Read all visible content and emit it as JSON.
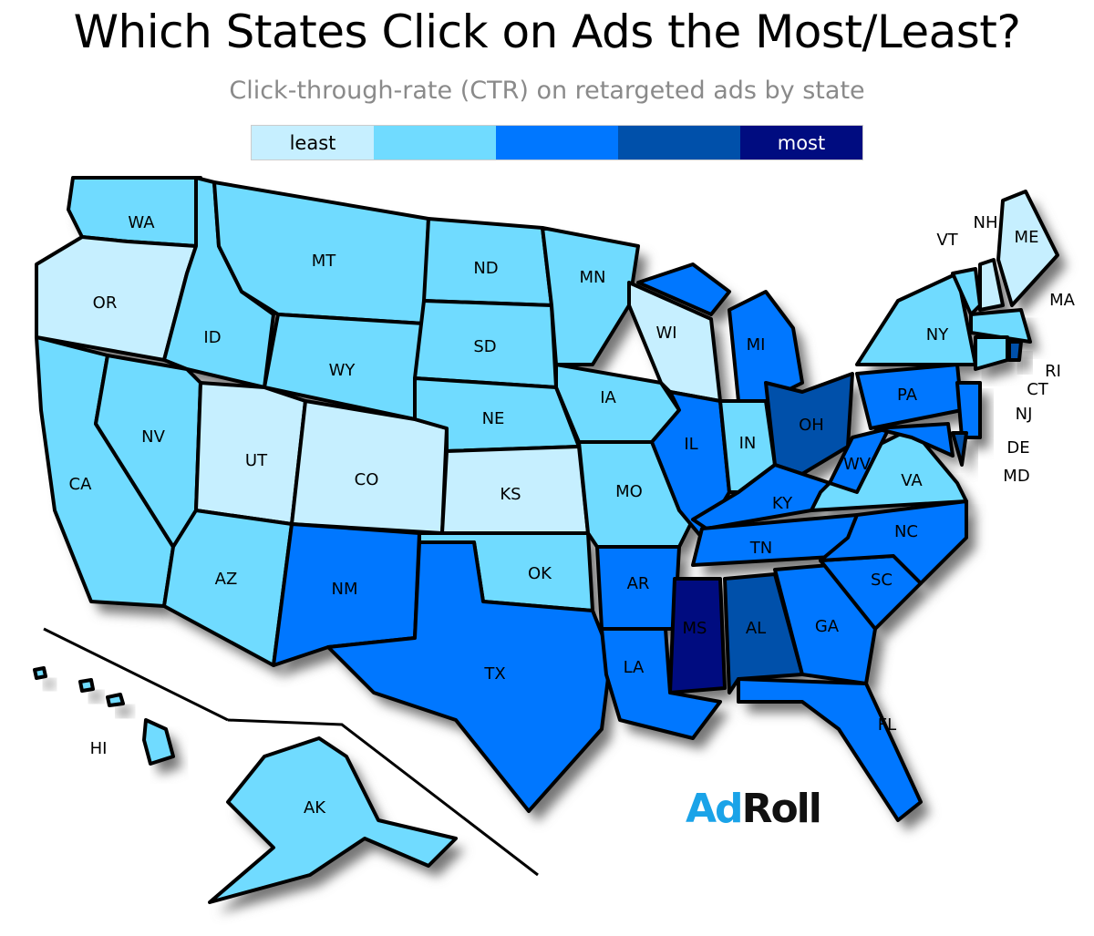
{
  "title": "Which States Click on Ads the Most/Least?",
  "subtitle": "Click-through-rate (CTR) on retargeted ads by state",
  "legend": {
    "low_label": "least",
    "high_label": "most",
    "colors": [
      "#c6efff",
      "#70dbff",
      "#0077ff",
      "#0050aa",
      "#000c80"
    ]
  },
  "logo": {
    "part1": "Ad",
    "part2": "Roll",
    "colors": [
      "#1aa3e8",
      "#111111"
    ]
  },
  "states": [
    {
      "abbr": "WA",
      "level": 2
    },
    {
      "abbr": "OR",
      "level": 1
    },
    {
      "abbr": "CA",
      "level": 2
    },
    {
      "abbr": "NV",
      "level": 2
    },
    {
      "abbr": "ID",
      "level": 2
    },
    {
      "abbr": "MT",
      "level": 2
    },
    {
      "abbr": "WY",
      "level": 2
    },
    {
      "abbr": "UT",
      "level": 1
    },
    {
      "abbr": "CO",
      "level": 1
    },
    {
      "abbr": "AZ",
      "level": 2
    },
    {
      "abbr": "NM",
      "level": 3
    },
    {
      "abbr": "ND",
      "level": 2
    },
    {
      "abbr": "SD",
      "level": 2
    },
    {
      "abbr": "NE",
      "level": 2
    },
    {
      "abbr": "KS",
      "level": 1
    },
    {
      "abbr": "OK",
      "level": 2
    },
    {
      "abbr": "TX",
      "level": 3
    },
    {
      "abbr": "MN",
      "level": 2
    },
    {
      "abbr": "IA",
      "level": 2
    },
    {
      "abbr": "MO",
      "level": 2
    },
    {
      "abbr": "AR",
      "level": 3
    },
    {
      "abbr": "LA",
      "level": 3
    },
    {
      "abbr": "WI",
      "level": 1
    },
    {
      "abbr": "IL",
      "level": 3
    },
    {
      "abbr": "IN",
      "level": 2
    },
    {
      "abbr": "MI",
      "level": 3
    },
    {
      "abbr": "OH",
      "level": 4
    },
    {
      "abbr": "KY",
      "level": 3
    },
    {
      "abbr": "TN",
      "level": 3
    },
    {
      "abbr": "MS",
      "level": 5
    },
    {
      "abbr": "AL",
      "level": 4
    },
    {
      "abbr": "GA",
      "level": 3
    },
    {
      "abbr": "FL",
      "level": 3
    },
    {
      "abbr": "SC",
      "level": 3
    },
    {
      "abbr": "NC",
      "level": 3
    },
    {
      "abbr": "VA",
      "level": 2
    },
    {
      "abbr": "WV",
      "level": 3
    },
    {
      "abbr": "PA",
      "level": 3
    },
    {
      "abbr": "NY",
      "level": 2
    },
    {
      "abbr": "NJ",
      "level": 3
    },
    {
      "abbr": "DE",
      "level": 4
    },
    {
      "abbr": "MD",
      "level": 3
    },
    {
      "abbr": "VT",
      "level": 2
    },
    {
      "abbr": "NH",
      "level": 1
    },
    {
      "abbr": "ME",
      "level": 1
    },
    {
      "abbr": "MA",
      "level": 2
    },
    {
      "abbr": "CT",
      "level": 2
    },
    {
      "abbr": "RI",
      "level": 4
    },
    {
      "abbr": "AK",
      "level": 2
    },
    {
      "abbr": "HI",
      "level": 2
    }
  ]
}
